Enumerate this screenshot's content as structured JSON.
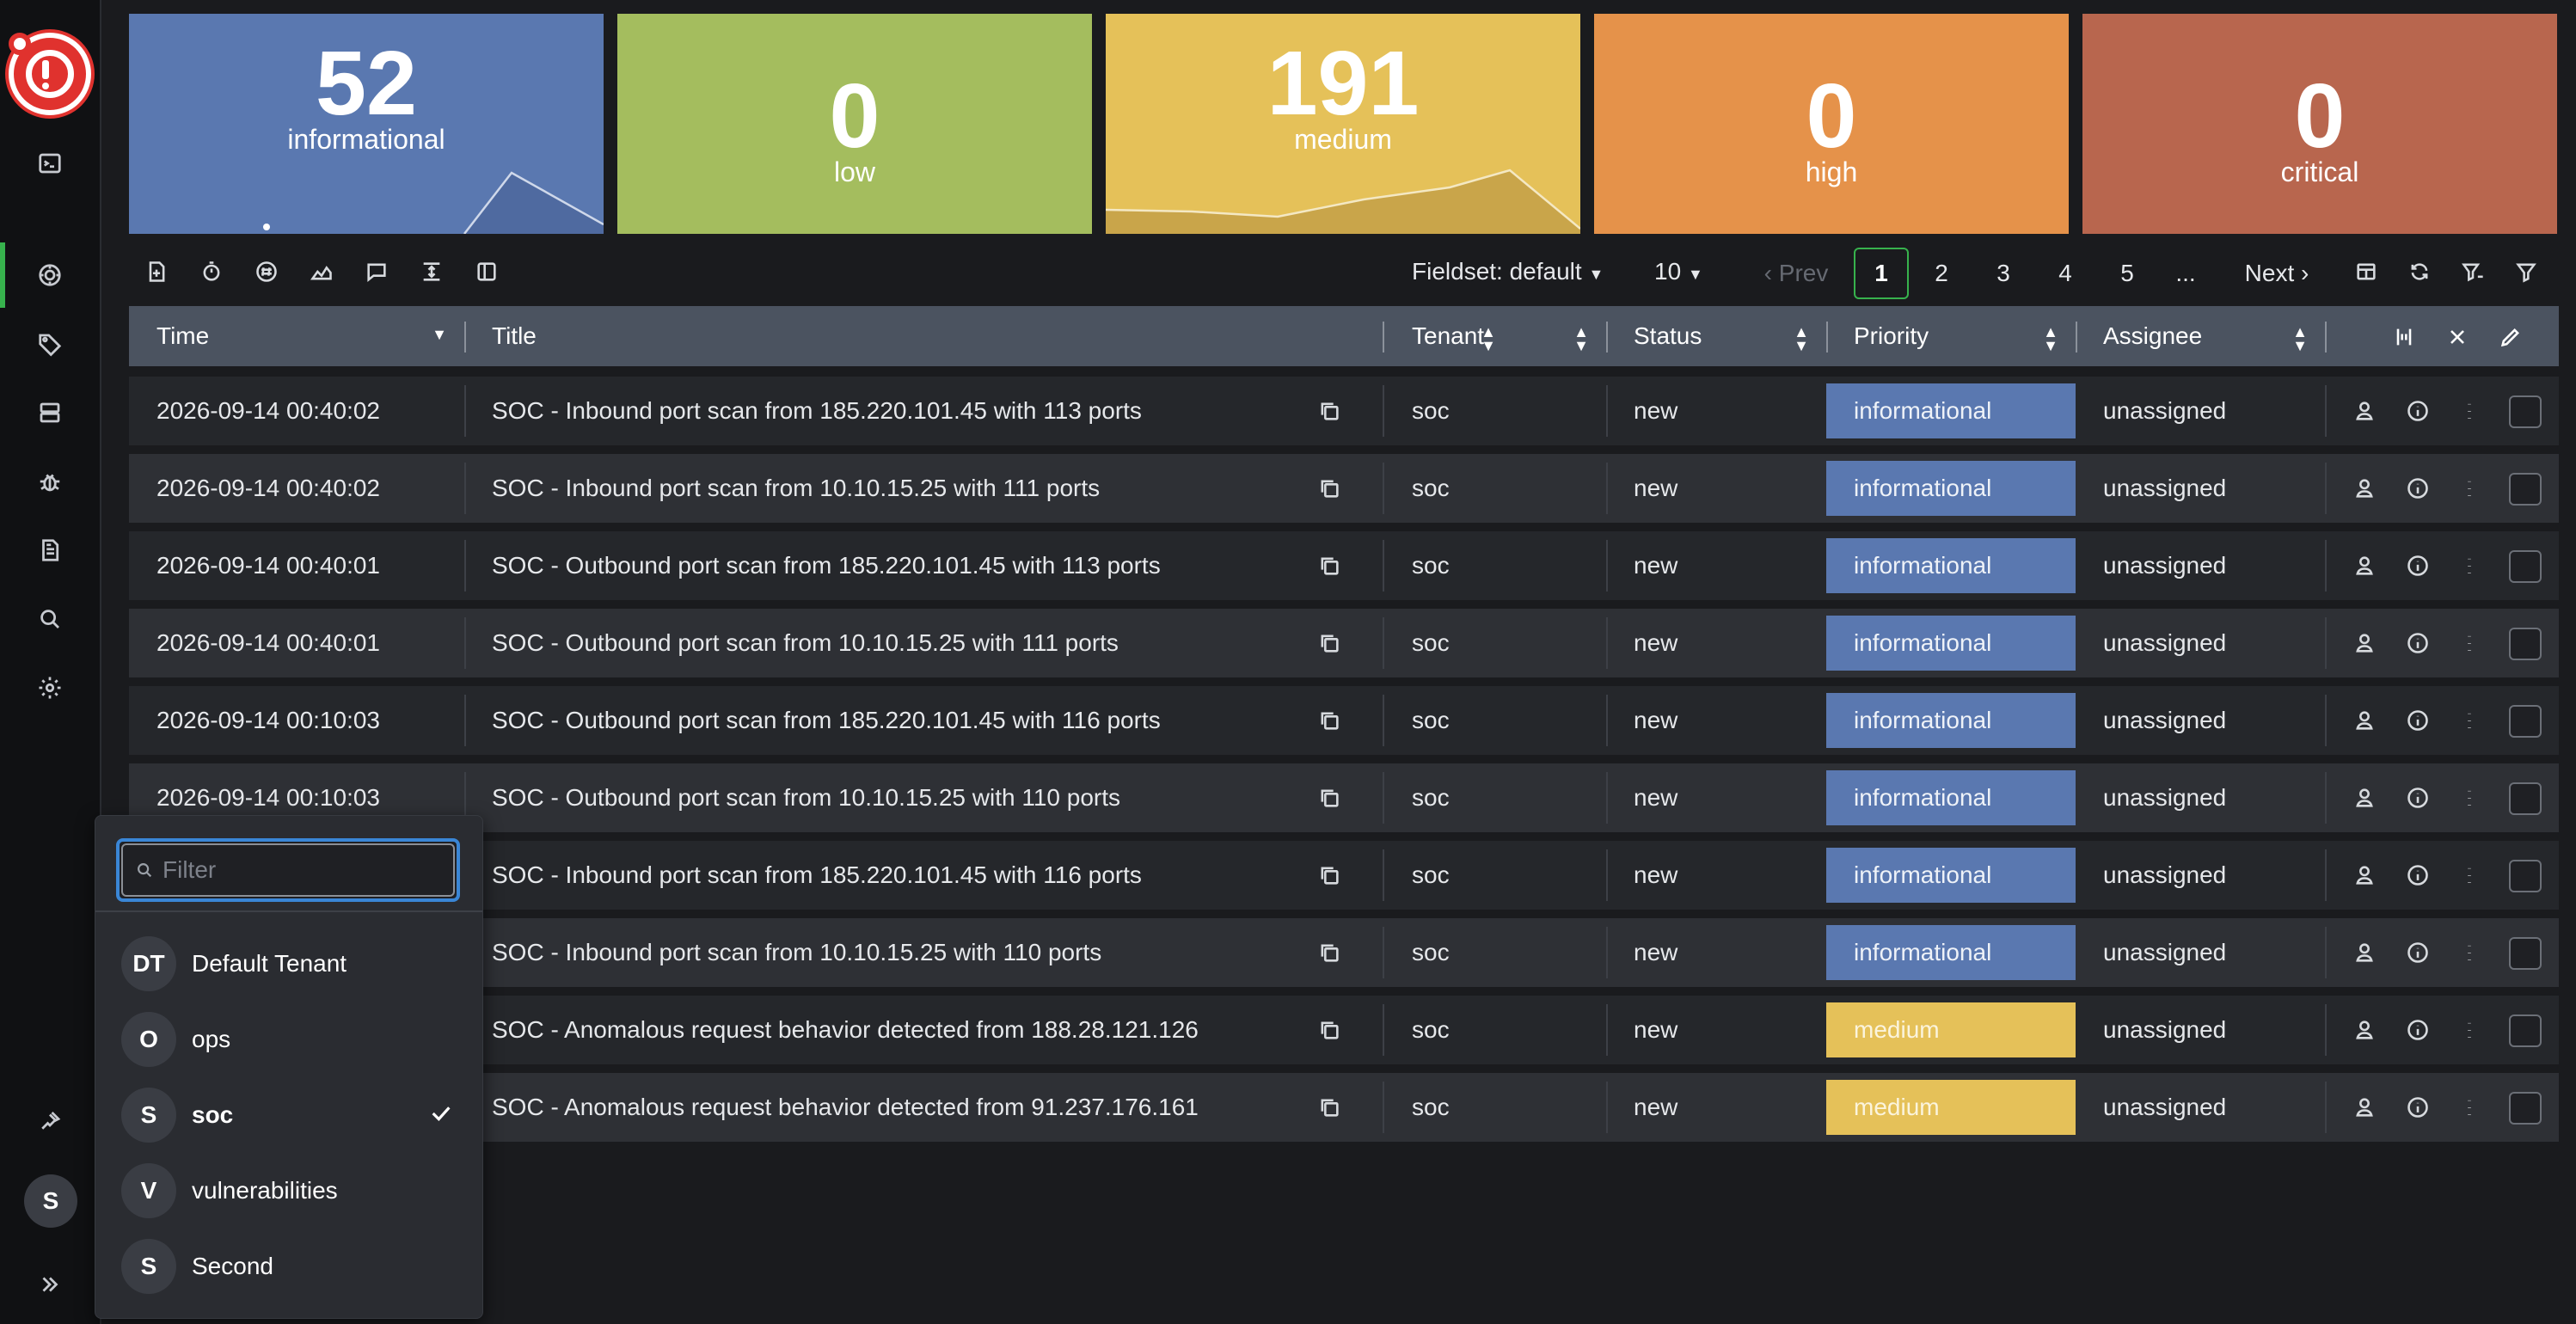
{
  "tiles": [
    {
      "value": "52",
      "label": "informational",
      "color": "#5a78b0"
    },
    {
      "value": "0",
      "label": "low",
      "color": "#a4bd5e"
    },
    {
      "value": "191",
      "label": "medium",
      "color": "#e5c159"
    },
    {
      "value": "0",
      "label": "high",
      "color": "#e5924a"
    },
    {
      "value": "0",
      "label": "critical",
      "color": "#b8664e"
    }
  ],
  "toolbar": {
    "fieldset_label": "Fieldset: default",
    "page_size": "10",
    "prev_label": "Prev",
    "next_label": "Next",
    "pages": [
      "1",
      "2",
      "3",
      "4",
      "5",
      "..."
    ],
    "current_page": "1"
  },
  "table": {
    "columns": [
      "Time",
      "Title",
      "Tenant",
      "Status",
      "Priority",
      "Assignee"
    ],
    "rows": [
      {
        "time": "2026-09-14 00:40:02",
        "title": "SOC - Inbound port scan from 185.220.101.45 with 113 ports",
        "tenant": "soc",
        "status": "new",
        "priority": "informational",
        "assignee": "unassigned"
      },
      {
        "time": "2026-09-14 00:40:02",
        "title": "SOC - Inbound port scan from 10.10.15.25 with 111 ports",
        "tenant": "soc",
        "status": "new",
        "priority": "informational",
        "assignee": "unassigned"
      },
      {
        "time": "2026-09-14 00:40:01",
        "title": "SOC - Outbound port scan from 185.220.101.45 with 113 ports",
        "tenant": "soc",
        "status": "new",
        "priority": "informational",
        "assignee": "unassigned"
      },
      {
        "time": "2026-09-14 00:40:01",
        "title": "SOC - Outbound port scan from 10.10.15.25 with 111 ports",
        "tenant": "soc",
        "status": "new",
        "priority": "informational",
        "assignee": "unassigned"
      },
      {
        "time": "2026-09-14 00:10:03",
        "title": "SOC - Outbound port scan from 185.220.101.45 with 116 ports",
        "tenant": "soc",
        "status": "new",
        "priority": "informational",
        "assignee": "unassigned"
      },
      {
        "time": "2026-09-14 00:10:03",
        "title": "SOC - Outbound port scan from 10.10.15.25 with 110 ports",
        "tenant": "soc",
        "status": "new",
        "priority": "informational",
        "assignee": "unassigned"
      },
      {
        "time": "",
        "title": "SOC - Inbound port scan from 185.220.101.45 with 116 ports",
        "tenant": "soc",
        "status": "new",
        "priority": "informational",
        "assignee": "unassigned"
      },
      {
        "time": "",
        "title": "SOC - Inbound port scan from 10.10.15.25 with 110 ports",
        "tenant": "soc",
        "status": "new",
        "priority": "informational",
        "assignee": "unassigned"
      },
      {
        "time": "",
        "title": "SOC - Anomalous request behavior detected from 188.28.121.126",
        "tenant": "soc",
        "status": "new",
        "priority": "medium",
        "assignee": "unassigned"
      },
      {
        "time": "",
        "title": "SOC - Anomalous request behavior detected from 91.237.176.161",
        "tenant": "soc",
        "status": "new",
        "priority": "medium",
        "assignee": "unassigned"
      }
    ]
  },
  "tenant_menu": {
    "filter_placeholder": "Filter",
    "items": [
      {
        "badge": "DT",
        "label": "Default Tenant",
        "selected": false
      },
      {
        "badge": "O",
        "label": "ops",
        "selected": false
      },
      {
        "badge": "S",
        "label": "soc",
        "selected": true
      },
      {
        "badge": "V",
        "label": "vulnerabilities",
        "selected": false
      },
      {
        "badge": "S",
        "label": "Second",
        "selected": false
      }
    ]
  },
  "user": {
    "avatar_initial": "S"
  },
  "colors": {
    "accent": "#37b24d",
    "informational": "#5a78b0",
    "medium": "#e5c159",
    "focus": "#3a86d6"
  }
}
